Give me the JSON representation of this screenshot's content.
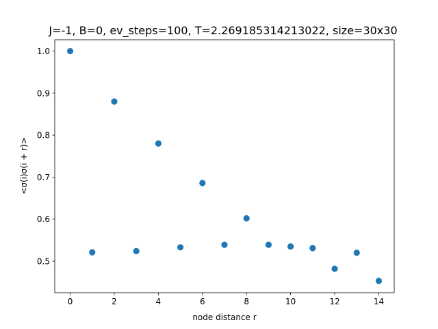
{
  "chart_data": {
    "type": "scatter",
    "title": "J=-1, B=0, ev_steps=100, T=2.269185314213022, size=30x30",
    "xlabel": "node distance r",
    "ylabel": "<σ(i)σ(i + r)>",
    "xlim": [
      -0.7,
      14.7
    ],
    "ylim": [
      0.425,
      1.027
    ],
    "xticks": [
      0,
      2,
      4,
      6,
      8,
      10,
      12,
      14
    ],
    "yticks": [
      0.5,
      0.6,
      0.7,
      0.8,
      0.9,
      1.0
    ],
    "xtick_labels": [
      "0",
      "2",
      "4",
      "6",
      "8",
      "10",
      "12",
      "14"
    ],
    "ytick_labels": [
      "0.5",
      "0.6",
      "0.7",
      "0.8",
      "0.9",
      "1.0"
    ],
    "grid": false,
    "marker_color": "#1f77b4",
    "points": [
      {
        "x": 0,
        "y": 1.0
      },
      {
        "x": 1,
        "y": 0.521
      },
      {
        "x": 2,
        "y": 0.88
      },
      {
        "x": 3,
        "y": 0.524
      },
      {
        "x": 4,
        "y": 0.78
      },
      {
        "x": 5,
        "y": 0.533
      },
      {
        "x": 6,
        "y": 0.686
      },
      {
        "x": 7,
        "y": 0.539
      },
      {
        "x": 8,
        "y": 0.602
      },
      {
        "x": 9,
        "y": 0.539
      },
      {
        "x": 10,
        "y": 0.535
      },
      {
        "x": 11,
        "y": 0.531
      },
      {
        "x": 12,
        "y": 0.482
      },
      {
        "x": 13,
        "y": 0.52
      },
      {
        "x": 14,
        "y": 0.453
      }
    ]
  }
}
